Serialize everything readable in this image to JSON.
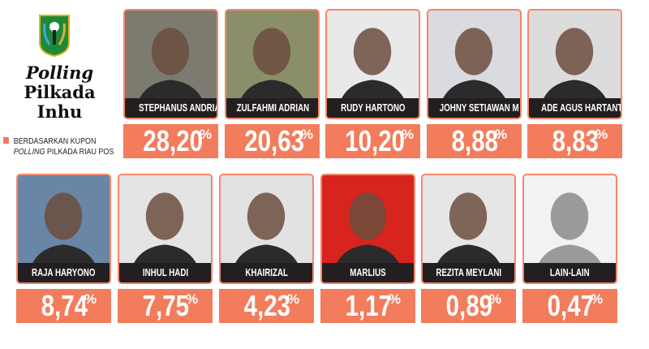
{
  "title": {
    "line1": "Polling",
    "line2": "Pilkada",
    "line3": "Inhu"
  },
  "note": {
    "line1": "BERDASARKAN KUPON",
    "line2_italic": "POLLING",
    "line2_rest": " PILKADA RIAU POS"
  },
  "colors": {
    "accent": "#f27c5c",
    "border": "#f4876a",
    "name_bar": "#231f20"
  },
  "candidates": [
    {
      "name": "STEPHANUS ANDRIANTO",
      "value": "28,20",
      "unit": "%",
      "bg": "#7d7b70"
    },
    {
      "name": "ZULFAHMI ADRIAN",
      "value": "20,63",
      "unit": "%",
      "bg": "#8a8f6a"
    },
    {
      "name": "RUDY HARTONO",
      "value": "10,20",
      "unit": "%",
      "bg": "#e9e9ea"
    },
    {
      "name": "JOHNY SETIAWAN M",
      "value": "8,88",
      "unit": "%",
      "bg": "#d9dbe0"
    },
    {
      "name": "ADE AGUS HARTANTO",
      "value": "8,83",
      "unit": "%",
      "bg": "#dcdcdc"
    },
    {
      "name": "RAJA HARYONO",
      "value": "8,74",
      "unit": "%",
      "bg": "#6a86a6"
    },
    {
      "name": "INHUL HADI",
      "value": "7,75",
      "unit": "%",
      "bg": "#e4e4e4"
    },
    {
      "name": "KHAIRIZAL",
      "value": "4,23",
      "unit": "%",
      "bg": "#e2e2e2"
    },
    {
      "name": "MARLIUS",
      "value": "1,17",
      "unit": "%",
      "bg": "#d8241f"
    },
    {
      "name": "REZITA MEYLANI",
      "value": "0,89",
      "unit": "%",
      "bg": "#e6e6e6"
    },
    {
      "name": "LAIN-LAIN",
      "value": "0,47",
      "unit": "%",
      "bg": "#f2f2f2"
    }
  ]
}
